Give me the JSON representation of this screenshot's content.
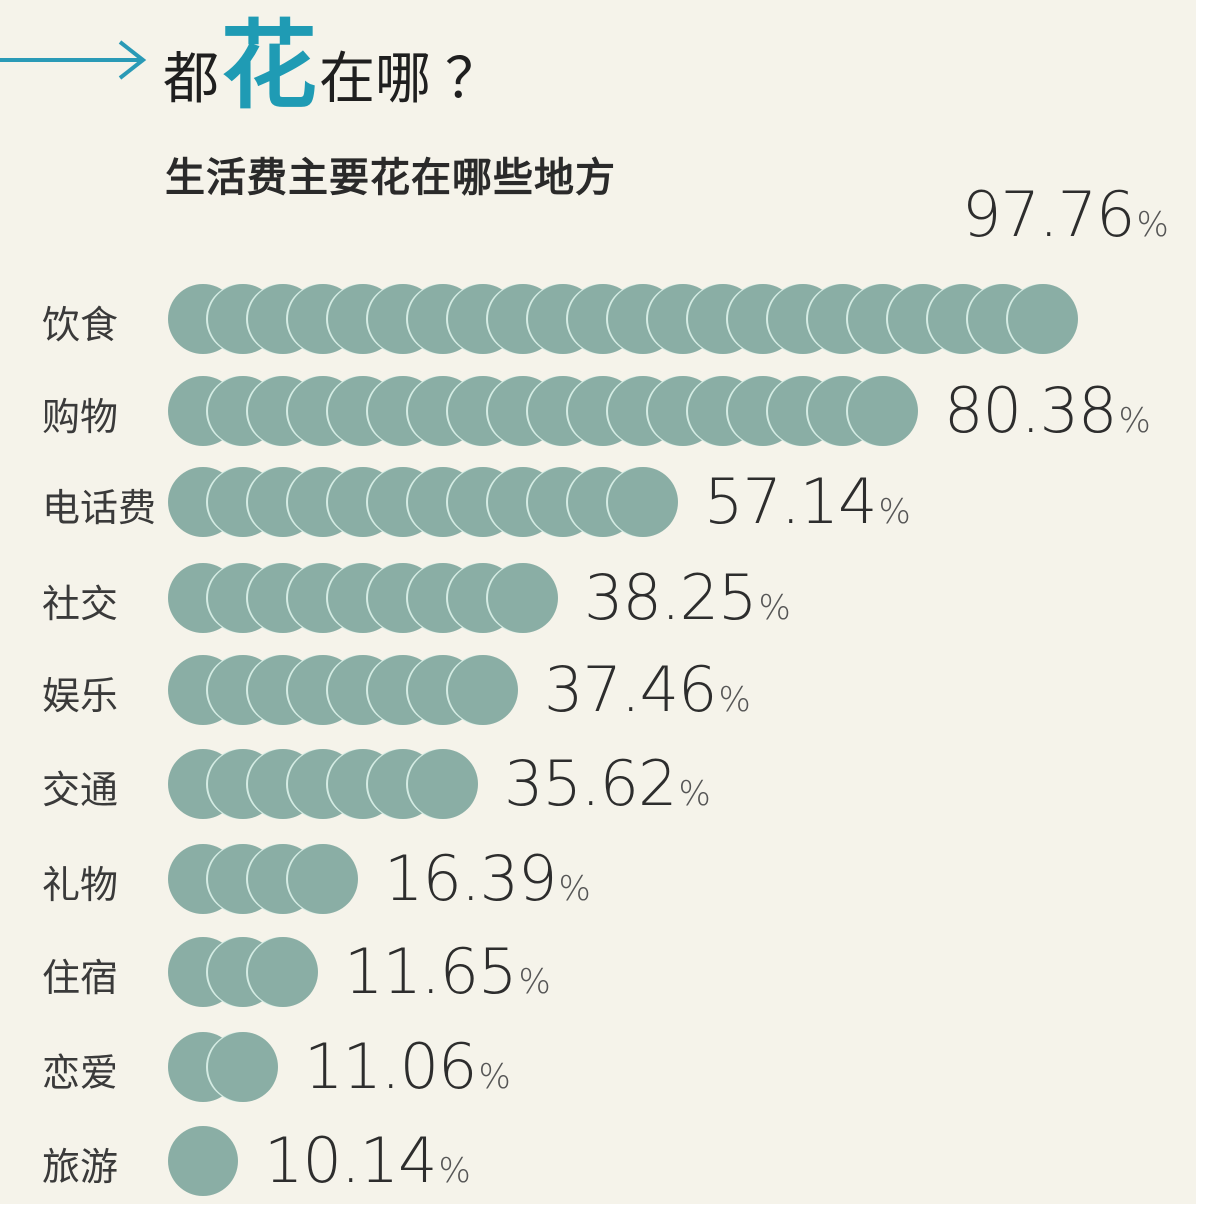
{
  "header": {
    "title_pre": "都",
    "title_highlight": "花",
    "title_post": "在哪",
    "title_q": "？",
    "subtitle": "生活费主要花在哪些地方"
  },
  "colors": {
    "background": "#f5f3ea",
    "dot": "#8aaea5",
    "dot_outline": "#d4ebe3",
    "accent": "#1f9bb4",
    "text": "#2d2d2d"
  },
  "rows": [
    {
      "label": "饮食",
      "value": "97.76",
      "pct": "%",
      "dots": 22
    },
    {
      "label": "购物",
      "value": "80.38",
      "pct": "%",
      "dots": 18
    },
    {
      "label": "电话费",
      "value": "57.14",
      "pct": "%",
      "dots": 12
    },
    {
      "label": "社交",
      "value": "38.25",
      "pct": "%",
      "dots": 9
    },
    {
      "label": "娱乐",
      "value": "37.46",
      "pct": "%",
      "dots": 8
    },
    {
      "label": "交通",
      "value": "35.62",
      "pct": "%",
      "dots": 7
    },
    {
      "label": "礼物",
      "value": "16.39",
      "pct": "%",
      "dots": 4
    },
    {
      "label": "住宿",
      "value": "11.65",
      "pct": "%",
      "dots": 3
    },
    {
      "label": "恋爱",
      "value": "11.06",
      "pct": "%",
      "dots": 2
    },
    {
      "label": "旅游",
      "value": "10.14",
      "pct": "%",
      "dots": 1
    }
  ],
  "chart_data": {
    "type": "bar",
    "style": "pictorial dot bar (horizontal)",
    "title": "都花在哪？",
    "subtitle": "生活费主要花在哪些地方",
    "categories": [
      "饮食",
      "购物",
      "电话费",
      "社交",
      "娱乐",
      "交通",
      "礼物",
      "住宿",
      "恋爱",
      "旅游"
    ],
    "values": [
      97.76,
      80.38,
      57.14,
      38.25,
      37.46,
      35.62,
      16.39,
      11.65,
      11.06,
      10.14
    ],
    "unit": "%",
    "orientation": "horizontal",
    "xlabel": "",
    "ylabel": "",
    "grid": false,
    "legend": null
  }
}
